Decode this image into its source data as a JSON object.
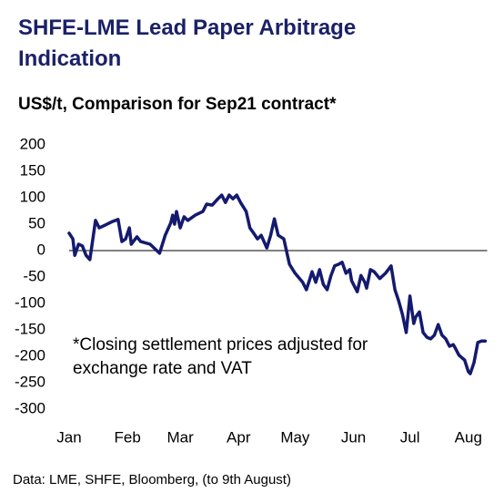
{
  "chart_data": {
    "type": "line",
    "title": "SHFE-LME Lead Paper Arbitrage Indication",
    "subtitle": "US$/t, Comparison for Sep21 contract*",
    "annotation": "*Closing settlement prices adjusted for exchange rate and VAT",
    "source": "Data: LME, SHFE, Bloomberg, (to 9th August)",
    "xlim": [
      0,
      222
    ],
    "xticks": [
      {
        "value": 0,
        "label": "Jan"
      },
      {
        "value": 31,
        "label": "Feb"
      },
      {
        "value": 59,
        "label": "Mar"
      },
      {
        "value": 90,
        "label": "Apr"
      },
      {
        "value": 120,
        "label": "May"
      },
      {
        "value": 151,
        "label": "Jun"
      },
      {
        "value": 181,
        "label": "Jul"
      },
      {
        "value": 212,
        "label": "Aug"
      }
    ],
    "ylim": [
      -300,
      200
    ],
    "yticks": [
      -300,
      -250,
      -200,
      -150,
      -100,
      -50,
      0,
      50,
      100,
      150,
      200
    ],
    "grid": false,
    "series": [
      {
        "color": "#141a6e",
        "x": [
          0,
          2,
          3,
          5,
          7,
          9,
          11,
          14,
          16,
          19,
          23,
          26,
          28,
          30,
          32,
          33,
          36,
          38,
          43,
          48,
          51,
          54,
          55,
          56,
          57,
          59,
          61,
          63,
          67,
          71,
          73,
          76,
          79,
          81,
          83,
          85,
          87,
          89,
          91,
          94,
          96,
          98,
          100,
          102,
          105,
          107,
          109,
          111,
          114,
          117,
          120,
          124,
          126,
          128,
          129,
          131,
          133,
          135,
          137,
          139,
          141,
          143,
          145,
          147,
          149,
          150,
          153,
          155,
          157,
          158,
          160,
          162,
          165,
          168,
          171,
          173,
          175,
          177,
          179,
          181,
          183,
          184,
          186,
          188,
          190,
          192,
          194,
          196,
          198,
          200,
          202,
          204,
          205,
          207,
          210,
          212,
          213,
          215,
          217,
          219,
          221
        ],
        "values": [
          33,
          22,
          -9,
          12,
          9,
          -9,
          -17,
          57,
          43,
          48,
          55,
          59,
          17,
          22,
          43,
          12,
          26,
          17,
          12,
          -5,
          29,
          53,
          67,
          50,
          74,
          43,
          64,
          57,
          67,
          74,
          88,
          86,
          98,
          105,
          91,
          105,
          98,
          105,
          91,
          74,
          43,
          33,
          22,
          29,
          5,
          29,
          60,
          29,
          22,
          -26,
          -43,
          -60,
          -74,
          -52,
          -40,
          -60,
          -36,
          -64,
          -74,
          -48,
          -29,
          -26,
          -22,
          -43,
          -36,
          -57,
          -78,
          -47,
          -60,
          -71,
          -36,
          -40,
          -53,
          -43,
          -29,
          -74,
          -95,
          -121,
          -155,
          -86,
          -138,
          -126,
          -116,
          -155,
          -164,
          -167,
          -160,
          -140,
          -160,
          -167,
          -181,
          -178,
          -184,
          -198,
          -207,
          -229,
          -233,
          -212,
          -174,
          -171,
          -171
        ]
      }
    ]
  }
}
